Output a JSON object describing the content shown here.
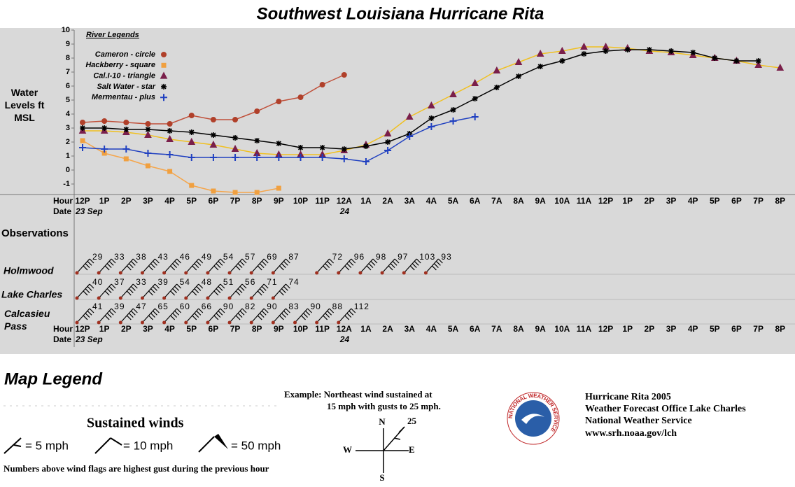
{
  "chart_data": {
    "type": "line",
    "title": "Southwest Louisiana Hurricane Rita",
    "ylabel": "Water Levels ft MSL",
    "legend_title": "River Legends",
    "hour_label": "Hour",
    "date_label": "Date",
    "dates": [
      {
        "index": 0,
        "label": "23 Sep"
      },
      {
        "index": 12,
        "label": "24"
      }
    ],
    "categories": [
      "12P",
      "1P",
      "2P",
      "3P",
      "4P",
      "5P",
      "6P",
      "7P",
      "8P",
      "9P",
      "10P",
      "11P",
      "12A",
      "1A",
      "2A",
      "3A",
      "4A",
      "5A",
      "6A",
      "7A",
      "8A",
      "9A",
      "10A",
      "11A",
      "12P",
      "1P",
      "2P",
      "3P",
      "4P",
      "5P",
      "6P",
      "7P",
      "8P"
    ],
    "ylim": [
      -1.75,
      10
    ],
    "yticks": [
      -1,
      0,
      1,
      2,
      3,
      4,
      5,
      6,
      7,
      8,
      9,
      10
    ],
    "series": [
      {
        "name": "Cameron - circle",
        "marker": "circle",
        "color": "#c0503a",
        "marker_color": "#b0402a",
        "values": [
          3.4,
          3.5,
          3.4,
          3.3,
          3.3,
          3.9,
          3.6,
          3.6,
          4.2,
          4.9,
          5.2,
          6.1,
          6.8,
          null,
          null,
          null,
          null,
          null,
          null,
          null,
          null,
          null,
          null,
          null,
          null,
          null,
          null,
          null,
          null,
          null,
          null,
          null,
          null
        ]
      },
      {
        "name": "Hackberry - square",
        "marker": "square",
        "color": "#f5a54a",
        "marker_color": "#f0a040",
        "values": [
          2.1,
          1.2,
          0.8,
          0.3,
          -0.1,
          -1.1,
          -1.5,
          -1.6,
          -1.6,
          -1.3,
          null,
          null,
          null,
          null,
          null,
          null,
          null,
          null,
          null,
          null,
          null,
          null,
          null,
          null,
          null,
          null,
          null,
          null,
          null,
          null,
          null,
          null,
          null
        ]
      },
      {
        "name": "Cal.I-10 - triangle",
        "marker": "triangle",
        "color": "#f0c020",
        "marker_color": "#7a1f4a",
        "values": [
          2.8,
          2.8,
          2.7,
          2.5,
          2.2,
          2.0,
          1.8,
          1.5,
          1.2,
          1.1,
          1.1,
          1.1,
          1.4,
          1.8,
          2.6,
          3.8,
          4.6,
          5.4,
          6.2,
          7.1,
          7.7,
          8.3,
          8.5,
          8.8,
          8.8,
          8.7,
          8.5,
          8.4,
          8.2,
          8.0,
          7.8,
          7.5,
          7.3
        ]
      },
      {
        "name": "Salt Water - star",
        "marker": "star",
        "color": "#000000",
        "marker_color": "#000000",
        "values": [
          3.0,
          3.0,
          2.9,
          2.9,
          2.8,
          2.7,
          2.5,
          2.3,
          2.1,
          1.9,
          1.6,
          1.6,
          1.5,
          1.7,
          2.0,
          2.6,
          3.7,
          4.3,
          5.1,
          5.9,
          6.7,
          7.4,
          7.8,
          8.3,
          8.5,
          8.6,
          8.6,
          8.5,
          8.4,
          8.0,
          7.8,
          7.8,
          null
        ]
      },
      {
        "name": "Mermentau - plus",
        "marker": "plus",
        "color": "#2040c0",
        "marker_color": "#2040c0",
        "values": [
          1.6,
          1.5,
          1.5,
          1.2,
          1.1,
          0.9,
          0.9,
          0.9,
          0.9,
          0.9,
          0.9,
          0.9,
          0.8,
          0.6,
          1.4,
          2.4,
          3.1,
          3.5,
          3.8,
          null,
          null,
          null,
          null,
          null,
          null,
          null,
          null,
          null,
          null,
          null,
          null,
          null,
          null
        ]
      }
    ],
    "observations_title": "Observations",
    "observations": [
      {
        "name": "Holmwood",
        "gusts": [
          29,
          33,
          38,
          43,
          46,
          49,
          54,
          57,
          69,
          87,
          null,
          72,
          96,
          98,
          97,
          103,
          93
        ]
      },
      {
        "name": "Lake Charles",
        "gusts": [
          40,
          37,
          33,
          39,
          54,
          48,
          51,
          56,
          71,
          74
        ]
      },
      {
        "name": "Calcasieu Pass",
        "gusts": [
          41,
          39,
          47,
          65,
          60,
          66,
          90,
          82,
          90,
          83,
          90,
          88,
          112
        ]
      }
    ]
  },
  "legend": {
    "title": "Map Legend",
    "sustained_title": "Sustained winds",
    "items": [
      "= 5 mph",
      "= 10 mph",
      "= 50 mph"
    ],
    "note": "Numbers above wind flags are highest gust during the previous hour",
    "example": [
      "Example: Northeast wind sustained at",
      "15 mph with gusts to 25 mph."
    ],
    "compass": {
      "n": "N",
      "s": "S",
      "e": "E",
      "w": "W",
      "gust": "25"
    }
  },
  "credits": {
    "logo": "NATIONAL WEATHER SERVICE",
    "lines": [
      "Hurricane Rita 2005",
      "Weather Forecast Office Lake Charles",
      "National Weather Service",
      "www.srh.noaa.gov/lch"
    ]
  }
}
